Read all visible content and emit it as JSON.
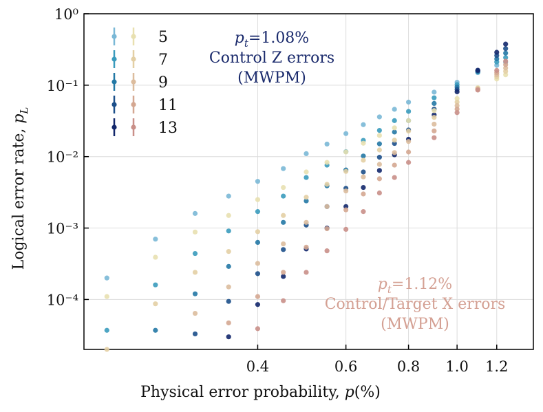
{
  "chart_data": {
    "type": "scatter",
    "log_x": true,
    "log_y": true,
    "grid": true,
    "legend": "upper left",
    "xlabel": {
      "text": "Physical error probability, ",
      "symbol": "p",
      "unit": "(%)"
    },
    "ylabel": {
      "text": "Logical error rate, ",
      "symbol": "p",
      "subscript": "L"
    },
    "annotations": [
      {
        "symbol": "p",
        "subscript": "t",
        "text": "=1.08%",
        "lines": [
          "Control Z errors",
          "(MWPM)"
        ],
        "color": "#1a2a6c"
      },
      {
        "symbol": "p",
        "subscript": "t",
        "text": "=1.12%",
        "lines": [
          "Control/Target X errors",
          "(MWPM)"
        ],
        "color": "#d4a093"
      }
    ],
    "xlim": [
      0.18,
      1.42
    ],
    "ylim": [
      2e-05,
      1
    ],
    "xticks": [
      0.4,
      0.6,
      0.8,
      {
        "value": 1,
        "label": "1.0"
      },
      1.2
    ],
    "yticks": [
      {
        "value": 0.0001,
        "label": "10⁻⁴"
      },
      {
        "value": 0.001,
        "label": "10⁻³"
      },
      {
        "value": 0.01,
        "label": "10⁻²"
      },
      {
        "value": 0.1,
        "label": "10⁻¹"
      },
      {
        "value": 1,
        "label": "10⁰"
      }
    ],
    "x": [
      0.2,
      0.25,
      0.3,
      0.35,
      0.4,
      0.45,
      0.5,
      0.55,
      0.6,
      0.65,
      0.7,
      0.75,
      0.8,
      0.9,
      1.0,
      1.1,
      1.2,
      1.25
    ],
    "series": [
      {
        "name": "5",
        "color": "#7ab8d6",
        "values": [
          0.0002,
          0.0007,
          0.0016,
          0.0028,
          0.0045,
          0.0068,
          0.011,
          0.015,
          0.021,
          0.028,
          0.036,
          0.046,
          0.058,
          0.08,
          0.11,
          0.15,
          0.19,
          0.21
        ]
      },
      {
        "name": "7",
        "color": "#3a9bbd",
        "values": [
          3.7e-05,
          0.00016,
          0.00044,
          0.00091,
          0.0017,
          0.0028,
          0.0051,
          0.0076,
          0.0117,
          0.0169,
          0.0233,
          0.0319,
          0.043,
          0.0666,
          0.102,
          0.153,
          0.211,
          0.243
        ]
      },
      {
        "name": "9",
        "color": "#2378a5",
        "values": [
          null,
          3.7e-05,
          0.00012,
          0.00029,
          0.00063,
          0.0012,
          0.0024,
          0.0039,
          0.0065,
          0.0102,
          0.0151,
          0.0221,
          0.0319,
          0.0555,
          0.0944,
          0.156,
          0.234,
          0.281
        ]
      },
      {
        "name": "11",
        "color": "#1c4f8a",
        "values": [
          null,
          null,
          3.3e-05,
          9.4e-05,
          0.00023,
          0.0005,
          0.0011,
          0.002,
          0.0036,
          0.0061,
          0.0098,
          0.0153,
          0.0236,
          0.0462,
          0.0874,
          0.159,
          0.26,
          0.325
        ]
      },
      {
        "name": "13",
        "color": "#12276b",
        "values": [
          null,
          null,
          null,
          3e-05,
          8.5e-05,
          0.00021,
          0.00051,
          0.001,
          0.002,
          0.0037,
          0.0064,
          0.0106,
          0.0175,
          0.0385,
          0.0809,
          0.162,
          0.289,
          0.376
        ]
      },
      {
        "name": "5",
        "color": "#e8e0b0",
        "values": [
          0.00011,
          0.00039,
          0.00088,
          0.0015,
          0.0025,
          0.0037,
          0.0061,
          0.0083,
          0.0116,
          0.0154,
          0.0198,
          0.0253,
          0.0319,
          0.044,
          0.065,
          0.092,
          0.122,
          0.14
        ]
      },
      {
        "name": "7",
        "color": "#e3cfa4",
        "values": [
          2e-05,
          8.7e-05,
          0.00024,
          0.00047,
          0.00089,
          0.0015,
          0.0027,
          0.0041,
          0.0062,
          0.0089,
          0.0124,
          0.017,
          0.0228,
          0.0354,
          0.058,
          0.0903,
          0.131,
          0.156
        ]
      },
      {
        "name": "9",
        "color": "#dcbc9d",
        "values": [
          null,
          null,
          6.4e-05,
          0.00015,
          0.00032,
          0.0006,
          0.0012,
          0.002,
          0.0033,
          0.0052,
          0.0078,
          0.0114,
          0.0163,
          0.0285,
          0.0518,
          0.0887,
          0.14,
          0.174
        ]
      },
      {
        "name": "11",
        "color": "#d4a791",
        "values": [
          null,
          null,
          null,
          4.7e-05,
          0.00011,
          0.00024,
          0.00054,
          0.00098,
          0.0018,
          0.003,
          0.0049,
          0.0076,
          0.0116,
          0.0229,
          0.0463,
          0.0871,
          0.15,
          0.194
        ]
      },
      {
        "name": "13",
        "color": "#c98f88",
        "values": [
          null,
          null,
          null,
          null,
          3.9e-05,
          9.6e-05,
          0.00024,
          0.00048,
          0.00096,
          0.0017,
          0.0031,
          0.0051,
          0.0083,
          0.0184,
          0.0413,
          0.0855,
          0.161,
          0.217
        ]
      }
    ]
  }
}
